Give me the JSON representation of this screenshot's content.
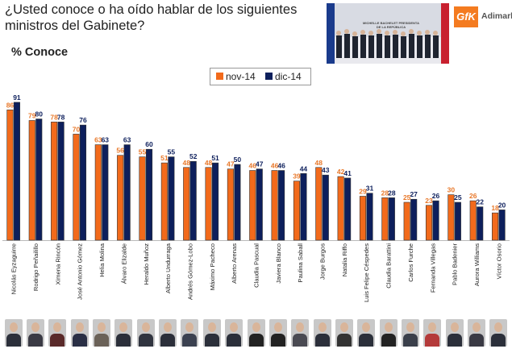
{
  "title": "¿Usted conoce o ha oído hablar de los siguientes ministros del Gabinete?",
  "subtitle": "% Conoce",
  "photo_caption": "MICHELLE BACHELET PRESIDENTA DE LA REPÚBLICA",
  "logo": {
    "brand": "GfK",
    "partner": "Adimark"
  },
  "colors": {
    "nov": "#f26a1b",
    "dic": "#0d1f5c"
  },
  "chart_data": {
    "type": "bar",
    "title": "¿Usted conoce o ha oído hablar de los siguientes ministros del Gabinete?",
    "ylabel": "% Conoce",
    "ylim": [
      0,
      100
    ],
    "categories": [
      "Nicolás Eyzaguirre",
      "Rodrigo Peñailillo",
      "Ximena Rincón",
      "José Antonio Gómez",
      "Helia Molina",
      "Álvaro Elizalde",
      "Heraldo Muñoz",
      "Alberto Undurraga",
      "Andrés Gómez-Lobo",
      "Máximo Pacheco",
      "Alberto Arenas",
      "Claudia Pascual",
      "Javiera Blanco",
      "Paulina Saball",
      "Jorge Burgos",
      "Natalia Riffo",
      "Luis Felipe Céspedes",
      "Claudia Barattini",
      "Carlos Furche",
      "Fernanda Villegas",
      "Pablo Badenier",
      "Aurora Williams",
      "Víctor Osorio"
    ],
    "series": [
      {
        "name": "nov-14",
        "values": [
          86,
          79,
          78,
          70,
          63,
          56,
          55,
          51,
          48,
          48,
          47,
          46,
          46,
          39,
          48,
          42,
          29,
          28,
          25,
          23,
          30,
          26,
          18
        ]
      },
      {
        "name": "dic-14",
        "values": [
          91,
          80,
          78,
          76,
          63,
          63,
          60,
          55,
          52,
          51,
          50,
          47,
          46,
          44,
          43,
          41,
          31,
          28,
          27,
          26,
          25,
          22,
          20
        ]
      }
    ],
    "legend": "top-center"
  }
}
